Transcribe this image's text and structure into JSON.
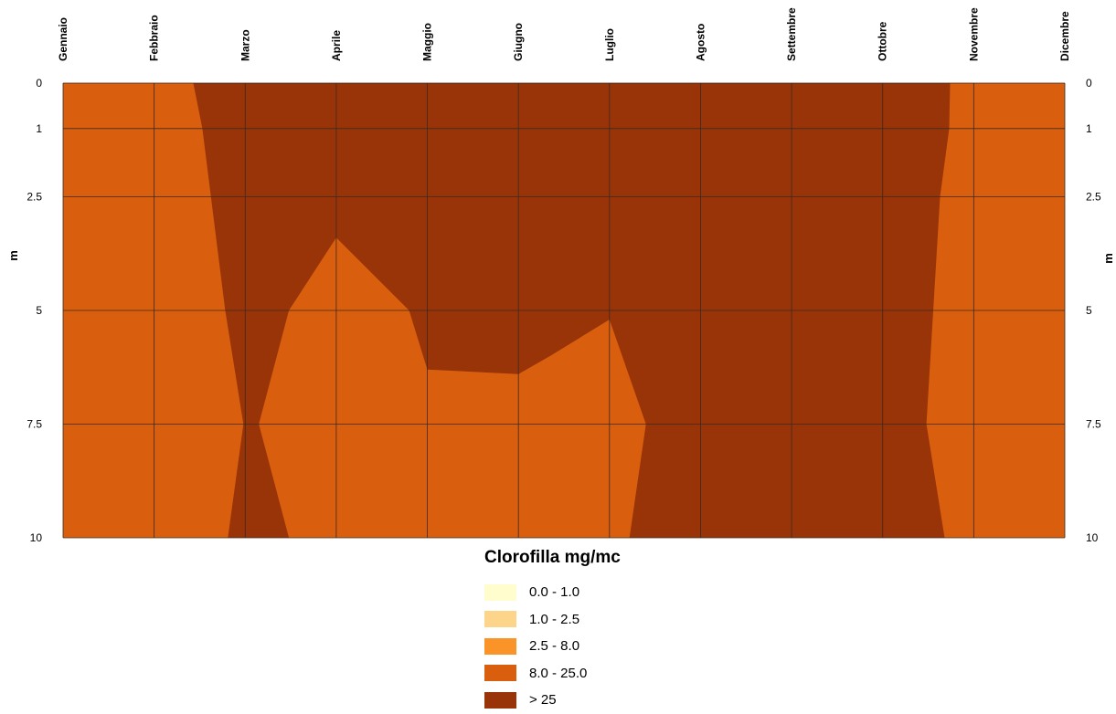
{
  "chart_data": {
    "type": "heatmap",
    "x_categories": [
      "Gennaio",
      "Febbraio",
      "Marzo",
      "Aprile",
      "Maggio",
      "Giugno",
      "Luglio",
      "Agosto",
      "Settembre",
      "Ottobre",
      "Novembre",
      "Dicembre"
    ],
    "y_ticks": [
      "0",
      "1",
      "2.5",
      "5",
      "7.5",
      "10"
    ],
    "y_values": [
      0,
      1,
      2.5,
      5,
      7.5,
      10
    ],
    "ylabel": "m",
    "ylim": [
      0,
      10
    ],
    "y_inverted": true,
    "grid": true,
    "legend_title": "Clorofilla mg/mc",
    "legend_position": "bottom-center",
    "legend": [
      {
        "label": "0.0 - 1.0",
        "color": "#fffccd"
      },
      {
        "label": "1.0 - 2.5",
        "color": "#fdd58a"
      },
      {
        "label": "2.5 - 8.0",
        "color": "#fb9428"
      },
      {
        "label": "8.0 - 25.0",
        "color": "#d95f0e"
      },
      {
        "label": "> 25",
        "color": "#993408"
      }
    ],
    "background_class": "8.0 - 25.0",
    "regions": [
      {
        "class": "> 25",
        "boundary": [
          {
            "x": "Febbraio",
            "dx": 0.43,
            "y": 0
          },
          {
            "x": "Febbraio",
            "dx": 0.53,
            "y": 1
          },
          {
            "x": "Febbraio",
            "dx": 0.78,
            "y": 5
          },
          {
            "x": "Marzo",
            "dx": -0.02,
            "y": 7.5
          },
          {
            "x": "Febbraio",
            "dx": 0.81,
            "y": 10
          },
          {
            "x": "Marzo",
            "dx": 0.48,
            "y": 10
          },
          {
            "x": "Marzo",
            "dx": 0.15,
            "y": 7.5
          },
          {
            "x": "Marzo",
            "dx": 0.48,
            "y": 5
          },
          {
            "x": "Aprile",
            "dx": 0,
            "y": 3.4
          },
          {
            "x": "Aprile",
            "dx": 0.8,
            "y": 5
          },
          {
            "x": "Maggio",
            "dx": 0,
            "y": 6.3
          },
          {
            "x": "Giugno",
            "dx": 0,
            "y": 6.4
          },
          {
            "x": "Giugno",
            "dx": 0.35,
            "y": 6
          },
          {
            "x": "Luglio",
            "dx": 0,
            "y": 5.2
          },
          {
            "x": "Luglio",
            "dx": 0.4,
            "y": 7.5
          },
          {
            "x": "Luglio",
            "dx": 0.22,
            "y": 10
          },
          {
            "x": "Ottobre",
            "dx": 0.68,
            "y": 10
          },
          {
            "x": "Ottobre",
            "dx": 0.48,
            "y": 7.5
          },
          {
            "x": "Ottobre",
            "dx": 0.63,
            "y": 2.5
          },
          {
            "x": "Ottobre",
            "dx": 0.73,
            "y": 1
          },
          {
            "x": "Ottobre",
            "dx": 0.74,
            "y": 0
          }
        ]
      }
    ]
  }
}
